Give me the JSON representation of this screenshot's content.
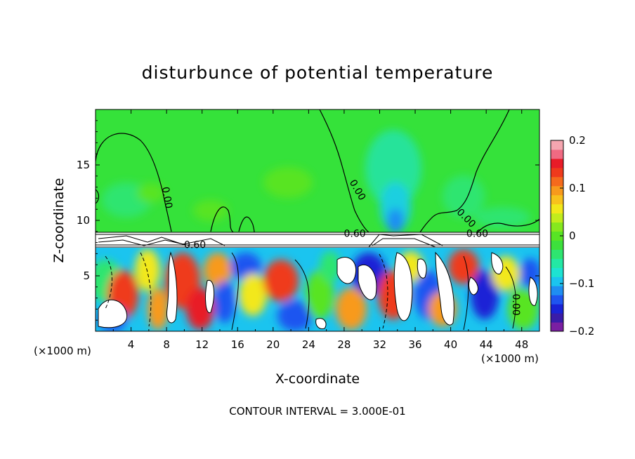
{
  "chart_data": {
    "type": "heatmap",
    "title": "disturbunce of potential temperature",
    "xlabel": "X-coordinate",
    "ylabel": "Z-coordinate",
    "x_unit_left": "(×1000 m)",
    "x_unit_right": "(×1000 m)",
    "footer": "CONTOUR INTERVAL = 3.000E-01",
    "xlim": [
      0,
      50
    ],
    "ylim": [
      0,
      20
    ],
    "x_ticks": [
      4,
      8,
      12,
      16,
      20,
      24,
      28,
      32,
      36,
      40,
      44,
      48
    ],
    "y_ticks": [
      5,
      10,
      15
    ],
    "colorbar": {
      "range": [
        -0.2,
        0.2
      ],
      "ticks": [
        0.2,
        0.1,
        0,
        -0.1,
        -0.2
      ],
      "tick_labels": [
        "0.2",
        "0.1",
        "0",
        "−0.1",
        "−0.2"
      ],
      "colors": [
        "#7a1fa2",
        "#3a1ca8",
        "#1a23d6",
        "#1f55f0",
        "#1f8ef2",
        "#1bc4ef",
        "#1de3d2",
        "#23e8a4",
        "#2ee570",
        "#3de03c",
        "#58e424",
        "#86e81e",
        "#c2ec1c",
        "#f2e81a",
        "#f8c21c",
        "#f89a1c",
        "#f56a1c",
        "#ef3a1c",
        "#e81c28",
        "#f06a82",
        "#f6a6b0"
      ]
    },
    "contour_labels": [
      {
        "text": "0.00",
        "x": 7.7,
        "z": 12.0,
        "angle": 80
      },
      {
        "text": "0.00",
        "x": 29.2,
        "z": 12.6,
        "angle": 60
      },
      {
        "text": "0.00",
        "x": 41.5,
        "z": 10.0,
        "angle": 45
      },
      {
        "text": "0.60",
        "x": 29.2,
        "z": 8.5,
        "angle": 0
      },
      {
        "text": "0.60",
        "x": 43.0,
        "z": 8.5,
        "angle": 0
      },
      {
        "text": "0.60",
        "x": 11.2,
        "z": 7.5,
        "angle": 0
      },
      {
        "text": "0.00",
        "x": 47.0,
        "z": 2.4,
        "angle": 90
      }
    ]
  }
}
